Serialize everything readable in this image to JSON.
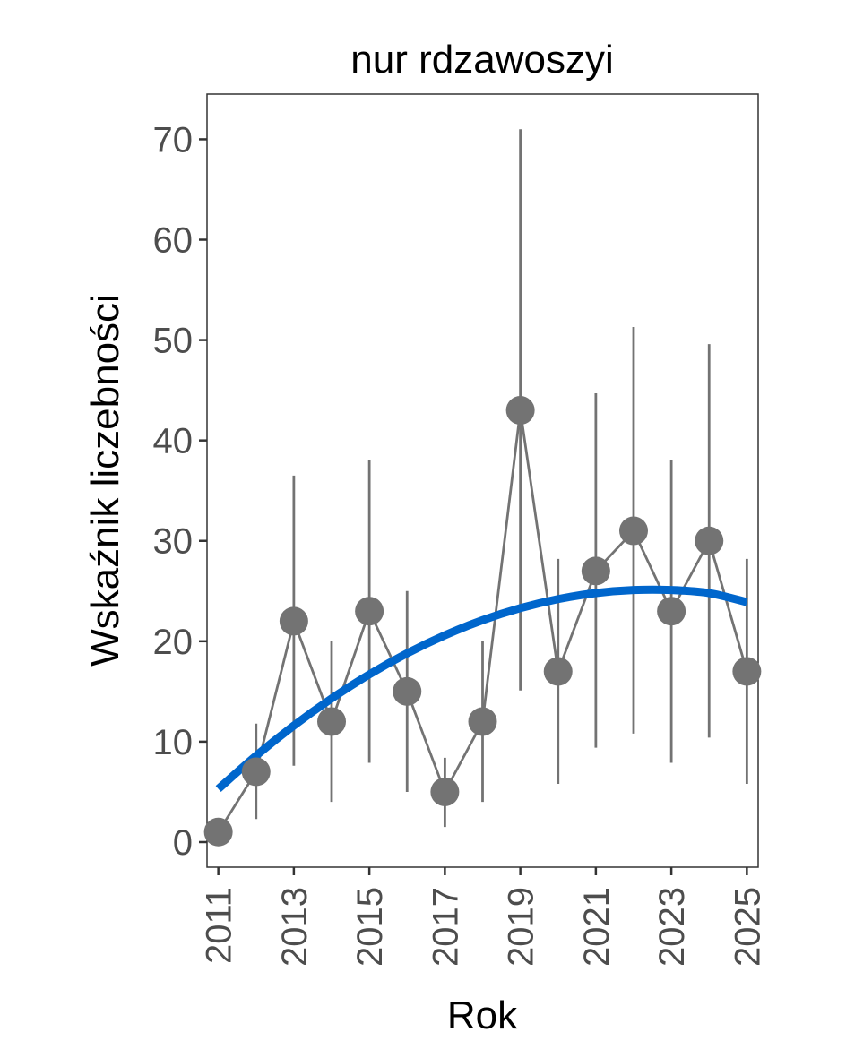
{
  "chart_data": {
    "type": "line",
    "title": "nur rdzawoszyi",
    "xlabel": "Rok",
    "ylabel": "Wskaźnik liczebności",
    "xlim": [
      2010.7,
      2025.3
    ],
    "ylim": [
      -2.5,
      74.5
    ],
    "x_ticks": [
      2011,
      2013,
      2015,
      2017,
      2019,
      2021,
      2023,
      2025
    ],
    "y_ticks": [
      0,
      10,
      20,
      30,
      40,
      50,
      60,
      70
    ],
    "grid": false,
    "series": [
      {
        "style": "points-with-error-bars",
        "color": "#737373",
        "x": [
          2011,
          2012,
          2013,
          2014,
          2015,
          2016,
          2017,
          2018,
          2019,
          2020,
          2021,
          2022,
          2023,
          2024,
          2025
        ],
        "y": [
          1,
          7,
          22,
          12,
          23,
          15,
          5,
          12,
          43,
          17,
          27,
          31,
          23,
          30,
          17
        ],
        "lower": [
          0.3,
          2.3,
          7.6,
          4.0,
          7.9,
          5.0,
          1.5,
          4.0,
          15.1,
          5.8,
          9.4,
          10.8,
          7.9,
          10.4,
          5.8
        ],
        "upper": [
          1.6,
          11.8,
          36.5,
          20.0,
          38.1,
          25.0,
          8.4,
          20.0,
          71.0,
          28.2,
          44.7,
          51.3,
          38.1,
          49.6,
          28.2
        ]
      },
      {
        "style": "trend-line",
        "color": "#0066cc",
        "x": [
          2011,
          2012,
          2013,
          2014,
          2015,
          2016,
          2017,
          2018,
          2019,
          2020,
          2021,
          2022,
          2023,
          2024,
          2025
        ],
        "y": [
          5.3,
          8.6,
          11.6,
          14.3,
          16.7,
          18.8,
          20.6,
          22.1,
          23.3,
          24.2,
          24.8,
          25.1,
          25.1,
          24.8,
          23.9
        ]
      }
    ]
  }
}
